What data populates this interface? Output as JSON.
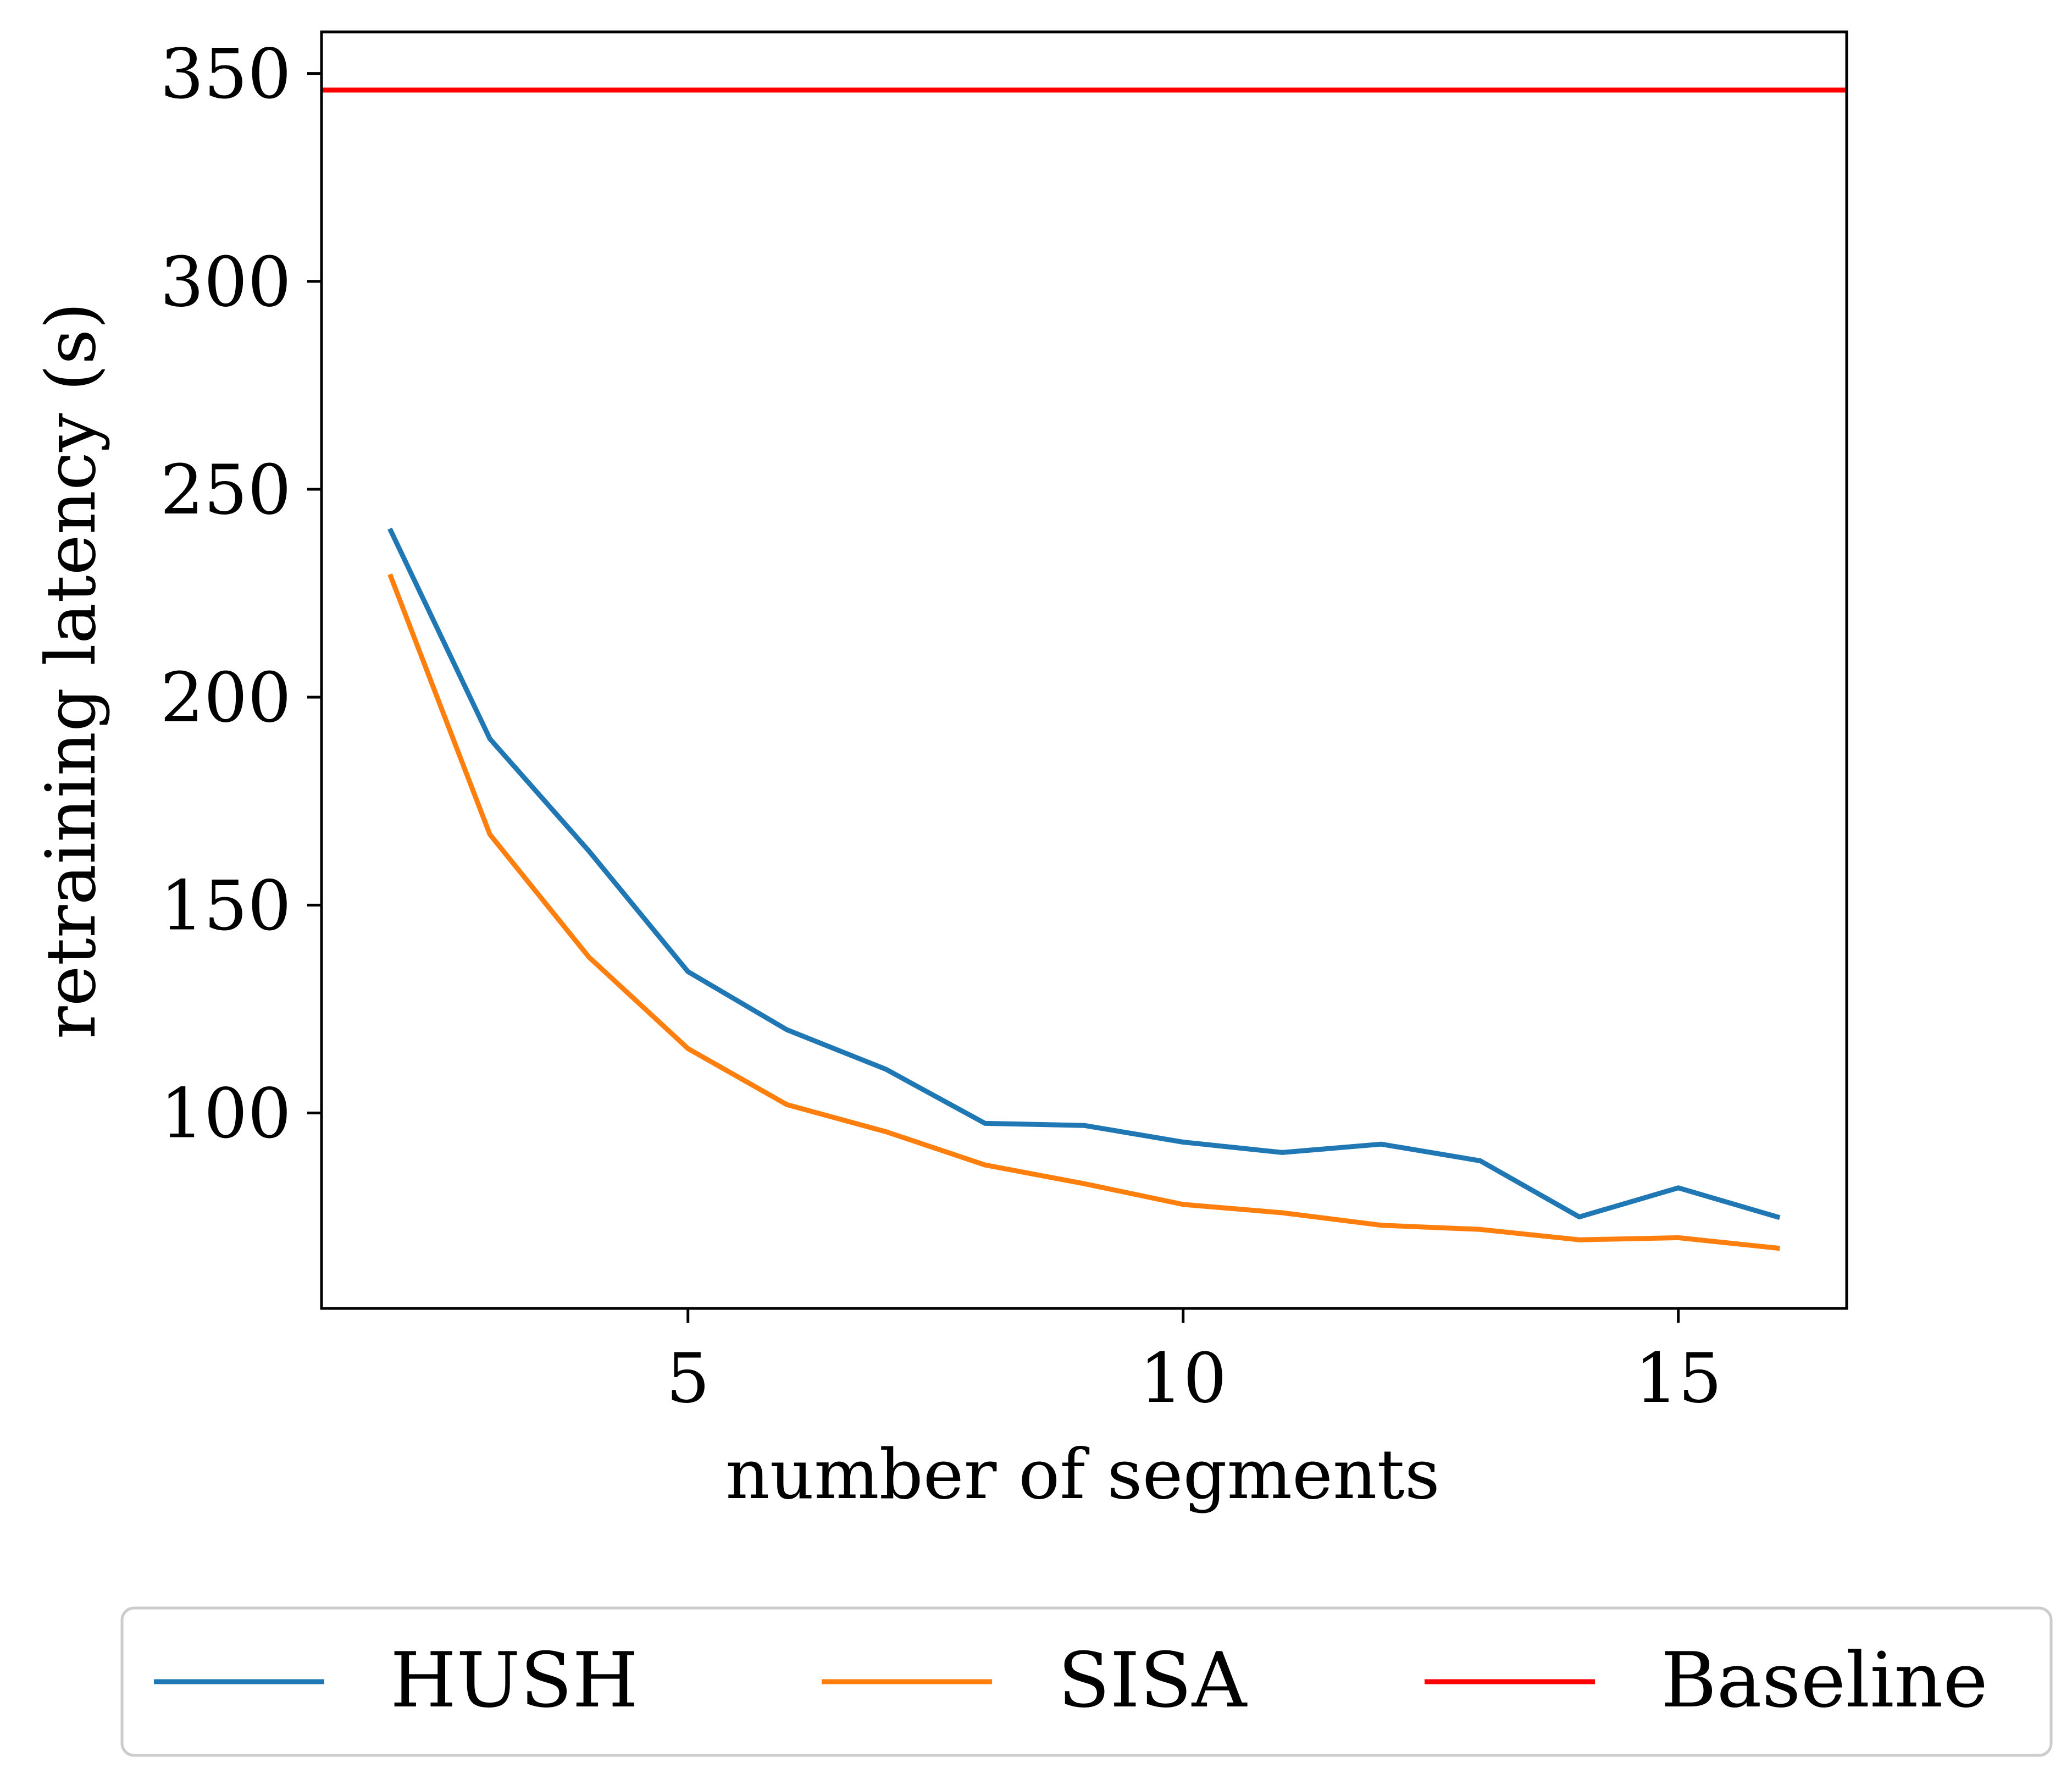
{
  "chart_data": {
    "type": "line",
    "title": "",
    "xlabel": "number of segments",
    "ylabel": "retraining latency (s)",
    "xlim": [
      1.3,
      16.7
    ],
    "ylim": [
      53,
      360
    ],
    "xticks": [
      5,
      10,
      15
    ],
    "yticks": [
      100,
      150,
      200,
      250,
      300,
      350
    ],
    "grid": false,
    "legend_position": "bottom-outside",
    "x": [
      2,
      3,
      4,
      5,
      6,
      7,
      8,
      9,
      10,
      11,
      12,
      13,
      14,
      15,
      16
    ],
    "series": [
      {
        "name": "HUSH",
        "color": "#1f77b4",
        "values": [
          240,
          190,
          163,
          134,
          120,
          110.5,
          97.5,
          97,
          93,
          90.5,
          92.5,
          88.5,
          75,
          82,
          75
        ]
      },
      {
        "name": "SISA",
        "color": "#ff7f0e",
        "values": [
          229,
          167,
          137.5,
          115.5,
          102,
          95.5,
          87.5,
          83,
          78,
          76,
          73,
          72,
          69.5,
          70,
          67.5
        ]
      }
    ],
    "hlines": [
      {
        "name": "Baseline",
        "color": "#ff0000",
        "y": 346
      }
    ]
  }
}
